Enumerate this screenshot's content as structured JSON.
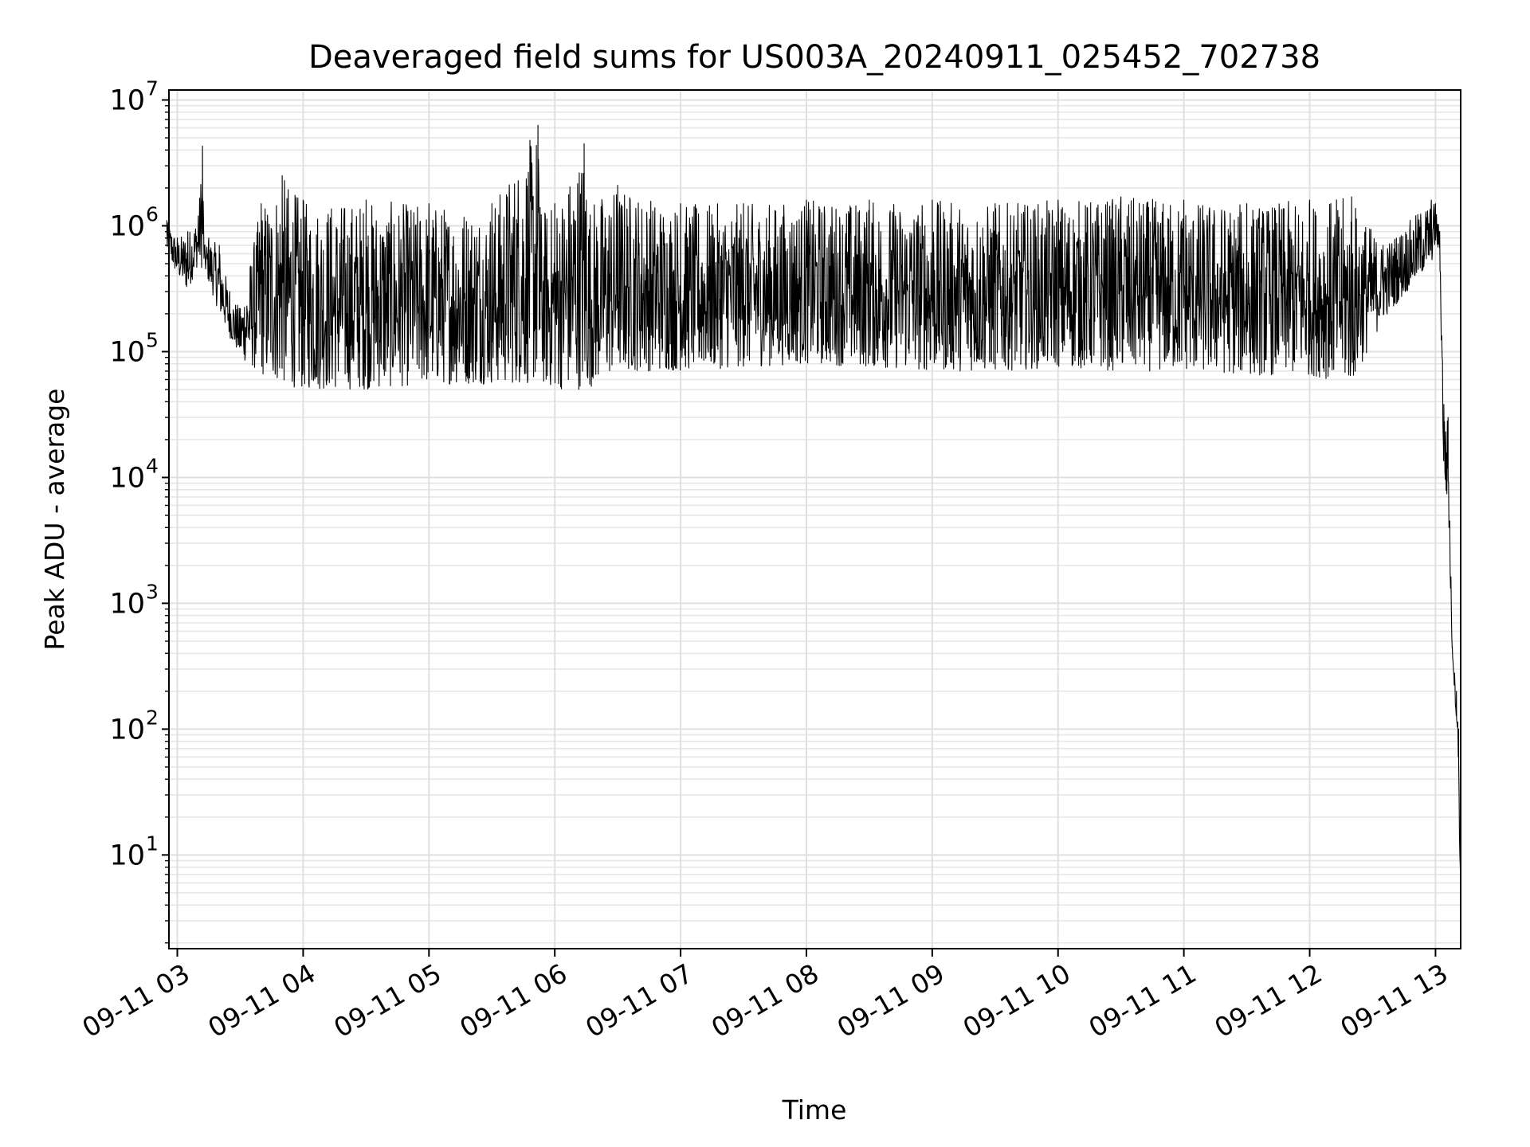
{
  "chart_data": {
    "type": "line",
    "title": "Deaveraged field sums for US003A_20240911_025452_702738",
    "xlabel": "Time",
    "ylabel": "Peak ADU - average",
    "yscale": "log",
    "ylim": [
      1.8,
      12000000
    ],
    "xlim": [
      "2024-09-11 02:56",
      "2024-09-11 13:12"
    ],
    "grid": "major and minor",
    "x_ticks": [
      "09-11 03",
      "09-11 04",
      "09-11 05",
      "09-11 06",
      "09-11 07",
      "09-11 08",
      "09-11 09",
      "09-11 10",
      "09-11 11",
      "09-11 12",
      "09-11 13"
    ],
    "y_ticks": [
      {
        "value": 10,
        "base": "10",
        "exp": "1"
      },
      {
        "value": 100,
        "base": "10",
        "exp": "2"
      },
      {
        "value": 1000,
        "base": "10",
        "exp": "3"
      },
      {
        "value": 10000,
        "base": "10",
        "exp": "4"
      },
      {
        "value": 100000,
        "base": "10",
        "exp": "5"
      },
      {
        "value": 1000000,
        "base": "10",
        "exp": "6"
      },
      {
        "value": 10000000,
        "base": "10",
        "exp": "7"
      }
    ],
    "series": [
      {
        "color": "#000000",
        "x": [
          "2024-09-11 02:55",
          "2024-09-11 03:00",
          "2024-09-11 03:05",
          "2024-09-11 03:10",
          "2024-09-11 03:12",
          "2024-09-11 03:13",
          "2024-09-11 03:15",
          "2024-09-11 03:20",
          "2024-09-11 03:25",
          "2024-09-11 03:30",
          "2024-09-11 03:40",
          "2024-09-11 03:50",
          "2024-09-11 04:00",
          "2024-09-11 04:30",
          "2024-09-11 05:00",
          "2024-09-11 05:30",
          "2024-09-11 05:52",
          "2024-09-11 05:53",
          "2024-09-11 06:00",
          "2024-09-11 06:14",
          "2024-09-11 06:15",
          "2024-09-11 06:30",
          "2024-09-11 07:00",
          "2024-09-11 07:30",
          "2024-09-11 08:00",
          "2024-09-11 08:30",
          "2024-09-11 09:00",
          "2024-09-11 09:30",
          "2024-09-11 10:00",
          "2024-09-11 10:30",
          "2024-09-11 11:00",
          "2024-09-11 11:30",
          "2024-09-11 12:00",
          "2024-09-11 12:20",
          "2024-09-11 12:35",
          "2024-09-11 12:58",
          "2024-09-11 13:00",
          "2024-09-11 13:02",
          "2024-09-11 13:04",
          "2024-09-11 13:06",
          "2024-09-11 13:08",
          "2024-09-11 13:10",
          "2024-09-11 13:11",
          "2024-09-11 13:12"
        ],
        "lower": [
          600000,
          400000,
          300000,
          500000,
          450000,
          450000,
          350000,
          200000,
          130000,
          90000,
          65000,
          55000,
          50000,
          50000,
          55000,
          55000,
          55000,
          55000,
          50000,
          50000,
          50000,
          70000,
          70000,
          75000,
          80000,
          75000,
          70000,
          70000,
          75000,
          70000,
          70000,
          65000,
          65000,
          55000,
          180000,
          500000,
          700000,
          600000,
          8000,
          6000,
          400,
          110,
          40,
          3
        ],
        "upper": [
          1100000,
          800000,
          900000,
          1200000,
          4300000,
          700000,
          800000,
          700000,
          300000,
          220000,
          1500000,
          2500000,
          1600000,
          1600000,
          1500000,
          1500000,
          6300000,
          1400000,
          1500000,
          4500000,
          1600000,
          2100000,
          1500000,
          1500000,
          1600000,
          1600000,
          1600000,
          1500000,
          1600000,
          1700000,
          1600000,
          1500000,
          1600000,
          1700000,
          700000,
          1600000,
          1500000,
          900000,
          38000,
          30000,
          450,
          200,
          100,
          5
        ]
      }
    ]
  }
}
